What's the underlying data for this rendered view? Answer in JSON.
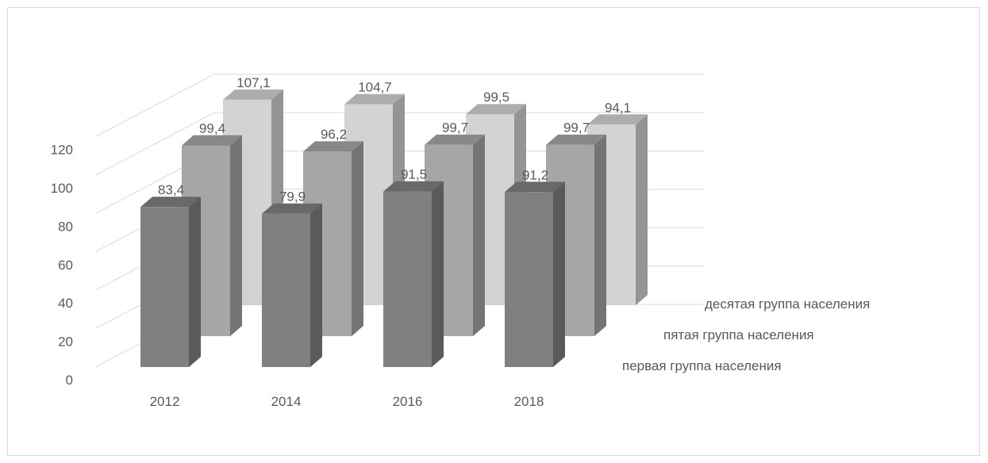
{
  "chart_data": {
    "type": "bar",
    "title": "",
    "xlabel": "",
    "ylabel": "",
    "categories": [
      "2012",
      "2014",
      "2016",
      "2018"
    ],
    "ylim": [
      0,
      120
    ],
    "yticks": [
      "0",
      "20",
      "40",
      "60",
      "80",
      "100",
      "120"
    ],
    "grid": true,
    "series": [
      {
        "name": "первая группа населения",
        "values": [
          83.4,
          79.9,
          91.5,
          91.2
        ],
        "labels": [
          "83,4",
          "79,9",
          "91,5",
          "91,2"
        ],
        "color": "#808080"
      },
      {
        "name": "пятая группа населения",
        "values": [
          99.4,
          96.2,
          99.7,
          99.7
        ],
        "labels": [
          "99,4",
          "96,2",
          "99,7",
          "99,7"
        ],
        "color": "#a6a6a6"
      },
      {
        "name": "десятая группа населения",
        "values": [
          107.1,
          104.7,
          99.5,
          94.1
        ],
        "labels": [
          "107,1",
          "104,7",
          "99,5",
          "94,1"
        ],
        "color": "#d3d3d3"
      }
    ]
  }
}
